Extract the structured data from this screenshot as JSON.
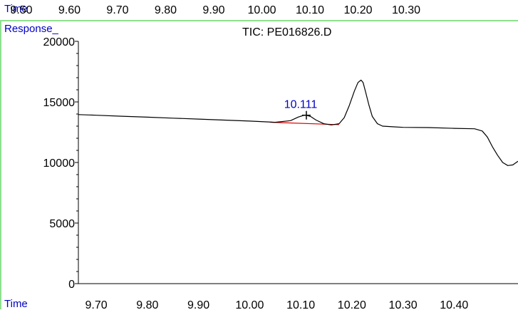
{
  "window": {
    "top_axis_label": "Time",
    "response_label": "Response_",
    "bottom_axis_label": "Time"
  },
  "top_axis": {
    "ticks": [
      9.5,
      9.6,
      9.7,
      9.8,
      9.9,
      10.0,
      10.1,
      10.2,
      10.3
    ],
    "tick_labels": [
      "9.50",
      "9.60",
      "9.70",
      "9.80",
      "9.90",
      "10.00",
      "10.10",
      "10.20",
      "10.30"
    ]
  },
  "chart_data": {
    "type": "line",
    "title": "TIC: PE016826.D",
    "xlabel": "Time",
    "ylabel": "Response_",
    "xlim": [
      9.665,
      10.525
    ],
    "ylim": [
      0,
      20000
    ],
    "x_ticks": [
      9.7,
      9.8,
      9.9,
      10.0,
      10.1,
      10.2,
      10.3,
      10.4
    ],
    "x_tick_labels": [
      "9.70",
      "9.80",
      "9.90",
      "10.00",
      "10.10",
      "10.20",
      "10.30",
      "10.40"
    ],
    "y_ticks": [
      0,
      5000,
      10000,
      15000,
      20000
    ],
    "y_tick_labels": [
      "0",
      "5000",
      "10000",
      "15000",
      "20000"
    ],
    "colors": {
      "trace": "#000000",
      "baseline": "#dd0000",
      "peak_label": "#0000c8"
    },
    "series": [
      {
        "x": [
          9.665,
          9.7,
          9.75,
          9.8,
          9.85,
          9.9,
          9.95,
          10.0,
          10.05,
          10.08,
          10.095,
          10.105,
          10.111,
          10.12,
          10.13,
          10.145,
          10.16,
          10.175,
          10.185,
          10.195,
          10.205,
          10.212,
          10.218,
          10.222,
          10.227,
          10.233,
          10.24,
          10.25,
          10.26,
          10.28,
          10.3,
          10.35,
          10.4,
          10.44,
          10.455,
          10.465,
          10.475,
          10.485,
          10.495,
          10.505,
          10.515,
          10.525
        ],
        "y": [
          13950,
          13900,
          13820,
          13740,
          13660,
          13580,
          13500,
          13420,
          13320,
          13450,
          13750,
          13880,
          13900,
          13780,
          13500,
          13200,
          13100,
          13200,
          13700,
          14700,
          15900,
          16600,
          16800,
          16600,
          15800,
          14800,
          13800,
          13200,
          13000,
          12950,
          12900,
          12880,
          12820,
          12780,
          12600,
          12100,
          11300,
          10600,
          10000,
          9750,
          9800,
          10100
        ]
      }
    ],
    "peaks": [
      {
        "rt": 10.111,
        "label": "10.111",
        "apex_response": 13900
      }
    ],
    "integration_baseline": {
      "x": [
        10.04,
        10.175
      ],
      "y": [
        13320,
        13120
      ]
    }
  }
}
